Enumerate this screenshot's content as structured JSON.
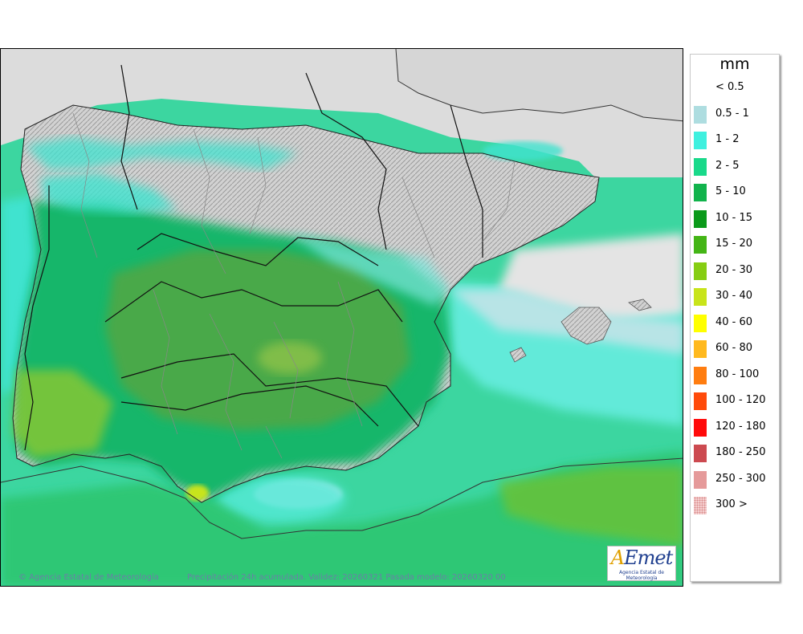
{
  "map": {
    "credit_left": "© Agencia Estatal de Meteorología",
    "credit_center": "Precipitación 24h acumulada. Validez: 20260321 Pasada modelo: 20260320 00",
    "logo_text": "AEmet",
    "logo_sub": "Agencia Estatal de Meteorología"
  },
  "legend": {
    "title": "mm",
    "items": [
      {
        "label": "< 0.5",
        "color": "#ffffff"
      },
      {
        "label": "0.5 - 1",
        "color": "#aedde0"
      },
      {
        "label": "1 - 2",
        "color": "#3ff0df"
      },
      {
        "label": "2 - 5",
        "color": "#19d98a"
      },
      {
        "label": "5 - 10",
        "color": "#11b34c"
      },
      {
        "label": "10 - 15",
        "color": "#0a9a1a"
      },
      {
        "label": "15 - 20",
        "color": "#44b516"
      },
      {
        "label": "20 - 30",
        "color": "#86cd12"
      },
      {
        "label": "30 - 40",
        "color": "#c8e41a"
      },
      {
        "label": "40 - 60",
        "color": "#ffff00"
      },
      {
        "label": "60 - 80",
        "color": "#ffb91e"
      },
      {
        "label": "80 - 100",
        "color": "#ff7d10"
      },
      {
        "label": "100 - 120",
        "color": "#ff4a0a"
      },
      {
        "label": "120 - 180",
        "color": "#ff0a0a"
      },
      {
        "label": "180 - 250",
        "color": "#cc4a50"
      },
      {
        "label": "250 - 300",
        "color": "#e59a9a"
      },
      {
        "label": "300 >",
        "color": "#f5d0d0"
      }
    ]
  }
}
